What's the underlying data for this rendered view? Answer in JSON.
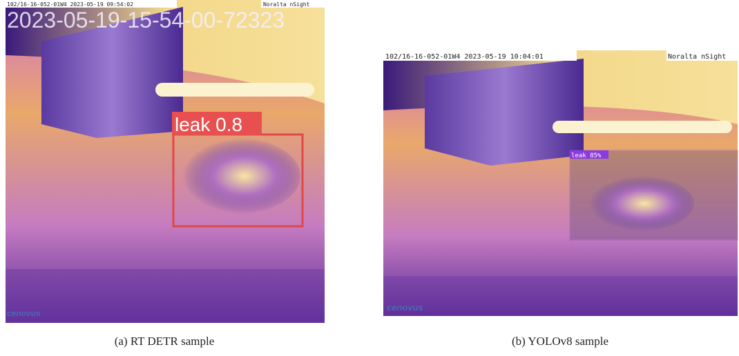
{
  "figures": [
    {
      "caption": "(a) RT DETR sample",
      "overlay": {
        "header": "102/16-16-052-01W4 2023-05-19 09:54:02",
        "brand": "Noralta nSight",
        "timestamp": "2023-05-19-15-54-00-72323",
        "detection": "leak 0.8",
        "logo": "cenovus"
      }
    },
    {
      "caption": "(b) YOLOv8 sample",
      "overlay": {
        "header": "102/16-16-052-01W4 2023-05-19 10:04:01",
        "brand": "Noralta nSight",
        "detection": "leak 85%",
        "logo": "cenovus"
      }
    }
  ]
}
